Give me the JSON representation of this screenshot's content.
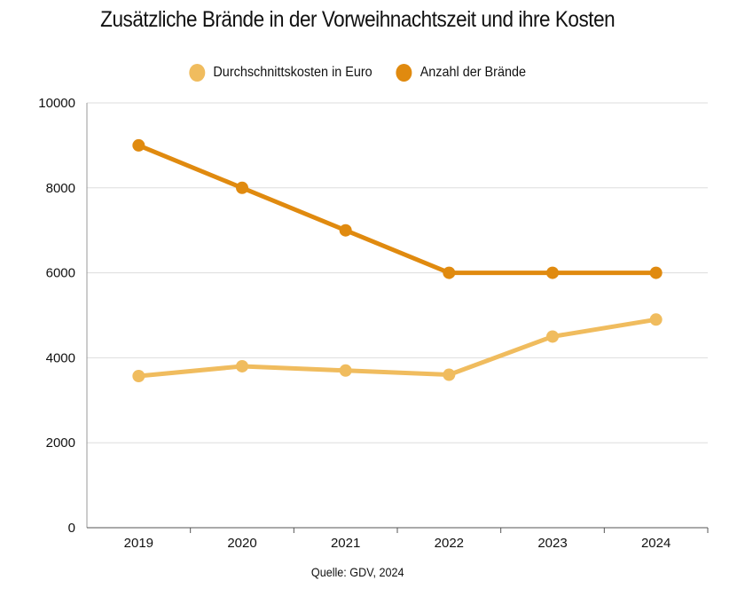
{
  "chart_data": {
    "type": "line",
    "title": "Zusätzliche Brände in der Vorweihnachtszeit und ihre Kosten",
    "categories": [
      "2019",
      "2020",
      "2021",
      "2022",
      "2023",
      "2024"
    ],
    "series": [
      {
        "name": "Durchschnittskosten in Euro",
        "color": "#f0bc5e",
        "values": [
          3570,
          3800,
          3700,
          3600,
          4500,
          4900
        ]
      },
      {
        "name": "Anzahl der Brände",
        "color": "#e08a0f",
        "values": [
          9000,
          8000,
          7000,
          6000,
          6000,
          6000
        ]
      }
    ],
    "ylim": [
      0,
      10000
    ],
    "yticks": [
      0,
      2000,
      4000,
      6000,
      8000,
      10000
    ],
    "xlabel": "",
    "ylabel": "",
    "grid": true,
    "legend_position": "top-center",
    "source": "Quelle: GDV, 2024"
  }
}
